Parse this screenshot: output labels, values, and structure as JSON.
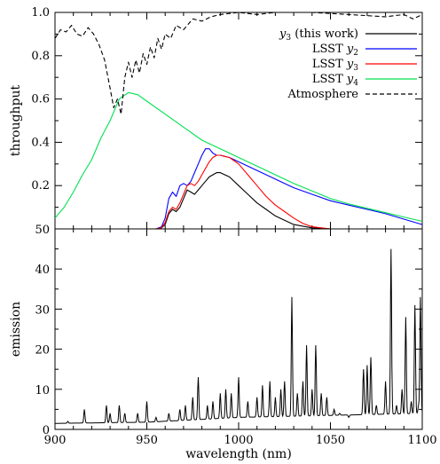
{
  "chart_data": [
    {
      "type": "line",
      "title": "",
      "xlabel": "",
      "ylabel": "throughput",
      "xlim": [
        900,
        1100
      ],
      "ylim": [
        0.0,
        1.0
      ],
      "xticks": [
        "900",
        "950",
        "1000",
        "1050",
        "1100"
      ],
      "yticks": [
        "0.2",
        "0.4",
        "0.6",
        "0.8",
        "1.0"
      ],
      "legend_position": "top-right",
      "series": [
        {
          "name": "y3 (this work)",
          "color": "#000000",
          "dash": "solid",
          "x": [
            900,
            955,
            958,
            960,
            962,
            964,
            966,
            968,
            970,
            972,
            974,
            976,
            978,
            980,
            982,
            984,
            986,
            988,
            990,
            995,
            1000,
            1005,
            1010,
            1015,
            1020,
            1030,
            1040,
            1050
          ],
          "y": [
            0.0,
            0.0,
            0.005,
            0.02,
            0.07,
            0.09,
            0.08,
            0.1,
            0.14,
            0.18,
            0.17,
            0.16,
            0.18,
            0.2,
            0.22,
            0.24,
            0.25,
            0.26,
            0.26,
            0.24,
            0.2,
            0.16,
            0.12,
            0.09,
            0.06,
            0.02,
            0.005,
            0.0
          ]
        },
        {
          "name": "LSST y2",
          "color": "#0000ff",
          "dash": "solid",
          "x": [
            900,
            955,
            958,
            960,
            962,
            964,
            966,
            968,
            970,
            972,
            974,
            976,
            978,
            980,
            982,
            984,
            986,
            988,
            990,
            995,
            1000,
            1010,
            1020,
            1030,
            1040,
            1050,
            1060,
            1070,
            1080,
            1090,
            1100
          ],
          "y": [
            0.0,
            0.0,
            0.01,
            0.05,
            0.14,
            0.17,
            0.15,
            0.2,
            0.21,
            0.2,
            0.22,
            0.26,
            0.3,
            0.34,
            0.37,
            0.37,
            0.35,
            0.34,
            0.34,
            0.33,
            0.31,
            0.27,
            0.23,
            0.19,
            0.16,
            0.13,
            0.11,
            0.09,
            0.07,
            0.045,
            0.02
          ]
        },
        {
          "name": "LSST y3",
          "color": "#ff0000",
          "dash": "solid",
          "x": [
            900,
            955,
            958,
            960,
            962,
            964,
            966,
            968,
            970,
            972,
            974,
            976,
            978,
            980,
            982,
            984,
            986,
            988,
            990,
            995,
            1000,
            1005,
            1010,
            1015,
            1020,
            1025,
            1030,
            1035,
            1040,
            1050
          ],
          "y": [
            0.0,
            0.0,
            0.005,
            0.03,
            0.08,
            0.1,
            0.09,
            0.12,
            0.16,
            0.2,
            0.21,
            0.2,
            0.22,
            0.25,
            0.28,
            0.31,
            0.33,
            0.34,
            0.34,
            0.33,
            0.3,
            0.25,
            0.2,
            0.15,
            0.11,
            0.08,
            0.05,
            0.025,
            0.01,
            0.0
          ]
        },
        {
          "name": "LSST y4",
          "color": "#00e050",
          "dash": "solid",
          "x": [
            900,
            905,
            910,
            915,
            920,
            925,
            930,
            935,
            940,
            945,
            950,
            960,
            970,
            980,
            990,
            1000,
            1010,
            1020,
            1030,
            1040,
            1050,
            1060,
            1070,
            1080,
            1090,
            1100
          ],
          "y": [
            0.05,
            0.1,
            0.17,
            0.25,
            0.32,
            0.42,
            0.5,
            0.6,
            0.63,
            0.62,
            0.59,
            0.53,
            0.47,
            0.41,
            0.37,
            0.33,
            0.29,
            0.25,
            0.21,
            0.175,
            0.14,
            0.115,
            0.095,
            0.075,
            0.055,
            0.035
          ]
        },
        {
          "name": "Atmosphere",
          "color": "#000000",
          "dash": "dashed",
          "x": [
            900,
            903,
            906,
            909,
            912,
            915,
            918,
            921,
            924,
            927,
            930,
            932,
            934,
            936,
            938,
            940,
            942,
            944,
            946,
            948,
            950,
            952,
            954,
            956,
            958,
            960,
            963,
            966,
            970,
            975,
            980,
            985,
            990,
            1000,
            1010,
            1020,
            1040,
            1060,
            1080,
            1090,
            1095,
            1100
          ],
          "y": [
            0.88,
            0.92,
            0.91,
            0.94,
            0.9,
            0.89,
            0.93,
            0.9,
            0.85,
            0.78,
            0.65,
            0.56,
            0.6,
            0.53,
            0.7,
            0.77,
            0.7,
            0.78,
            0.72,
            0.81,
            0.76,
            0.84,
            0.79,
            0.88,
            0.83,
            0.9,
            0.88,
            0.94,
            0.92,
            0.97,
            0.96,
            0.98,
            0.99,
            1.0,
            0.99,
            1.0,
            1.0,
            0.99,
            0.98,
            0.99,
            0.97,
            0.99
          ]
        }
      ]
    },
    {
      "type": "line",
      "title": "",
      "xlabel": "wavelength (nm)",
      "ylabel": "emission",
      "xlim": [
        900,
        1100
      ],
      "ylim": [
        0,
        50
      ],
      "xticks": [
        "900",
        "950",
        "1000",
        "1050",
        "1100"
      ],
      "yticks": [
        "0",
        "10",
        "20",
        "30",
        "40",
        "50"
      ],
      "series": [
        {
          "name": "",
          "color": "#000000",
          "dash": "solid",
          "baseline": [
            [
              900,
              1.5
            ],
            [
              950,
              1.8
            ],
            [
              980,
              2.5
            ],
            [
              1000,
              3.0
            ],
            [
              1050,
              3.5
            ],
            [
              1100,
              4.0
            ]
          ],
          "peaks": [
            [
              907,
              2
            ],
            [
              916,
              5
            ],
            [
              928,
              6
            ],
            [
              930,
              4
            ],
            [
              935,
              6
            ],
            [
              938,
              4
            ],
            [
              945,
              4
            ],
            [
              950,
              7
            ],
            [
              955,
              3
            ],
            [
              962,
              4
            ],
            [
              968,
              5
            ],
            [
              971,
              6
            ],
            [
              975,
              8
            ],
            [
              978,
              13
            ],
            [
              983,
              6
            ],
            [
              986,
              7
            ],
            [
              990,
              9
            ],
            [
              993,
              10
            ],
            [
              996,
              9
            ],
            [
              1000,
              13
            ],
            [
              1005,
              7
            ],
            [
              1010,
              8
            ],
            [
              1013,
              11
            ],
            [
              1017,
              12
            ],
            [
              1020,
              8
            ],
            [
              1023,
              10
            ],
            [
              1025,
              12
            ],
            [
              1029,
              33
            ],
            [
              1032,
              9
            ],
            [
              1035,
              12
            ],
            [
              1037,
              21
            ],
            [
              1040,
              10
            ],
            [
              1042,
              21
            ],
            [
              1045,
              9
            ],
            [
              1048,
              8
            ],
            [
              1052,
              5
            ],
            [
              1055,
              4
            ],
            [
              1060,
              3
            ],
            [
              1068,
              15
            ],
            [
              1070,
              16
            ],
            [
              1072,
              18
            ],
            [
              1075,
              6
            ],
            [
              1080,
              12
            ],
            [
              1083,
              45
            ],
            [
              1086,
              6
            ],
            [
              1089,
              10
            ],
            [
              1091,
              28
            ],
            [
              1094,
              7
            ],
            [
              1096,
              31
            ],
            [
              1098,
              6
            ],
            [
              1099,
              33
            ]
          ]
        }
      ]
    }
  ],
  "legend": {
    "entries": [
      {
        "label": "y",
        "sub": "3",
        "rest": " (this work)",
        "color": "#000000",
        "dash": "solid"
      },
      {
        "label": "LSST ",
        "italic": "y",
        "sub": "2",
        "color": "#0000ff",
        "dash": "solid"
      },
      {
        "label": "LSST ",
        "italic": "y",
        "sub": "3",
        "color": "#ff0000",
        "dash": "solid"
      },
      {
        "label": "LSST ",
        "italic": "y",
        "sub": "4",
        "color": "#00e050",
        "dash": "solid"
      },
      {
        "label": "Atmosphere",
        "color": "#000000",
        "dash": "dashed"
      }
    ]
  }
}
